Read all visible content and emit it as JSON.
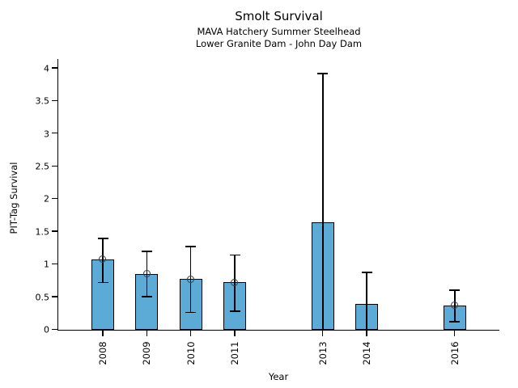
{
  "header": {
    "title": "Smolt Survival",
    "subtitle1": "MAVA Hatchery Summer Steelhead",
    "subtitle2": "Lower Granite Dam - John Day Dam"
  },
  "chart_data": {
    "type": "bar",
    "title": "Smolt Survival",
    "subtitles": [
      "MAVA Hatchery Summer Steelhead",
      "Lower Granite Dam - John Day Dam"
    ],
    "xlabel": "Year",
    "ylabel": "PIT-Tag Survival",
    "ylim": [
      0,
      4
    ],
    "yticks": [
      "0",
      "0.5",
      "1",
      "1.5",
      "2",
      "2.5",
      "3",
      "3.5",
      "4"
    ],
    "ytick_values": [
      0,
      0.5,
      1,
      1.5,
      2,
      2.5,
      3,
      3.5,
      4
    ],
    "xlim_years": [
      2007,
      2017
    ],
    "grid": false,
    "legend": "none",
    "bar_fill_color": "#5BABD6",
    "bar_edge_color": "#000000",
    "error_bar_color": "#000000",
    "categories": [
      "2008",
      "2009",
      "2010",
      "2011",
      "2013",
      "2014",
      "2016"
    ],
    "years": [
      2008,
      2009,
      2010,
      2011,
      2013,
      2014,
      2016
    ],
    "values": [
      1.07,
      0.85,
      0.77,
      0.72,
      1.64,
      0.39,
      0.37
    ],
    "error_low": [
      0.72,
      0.5,
      0.26,
      0.28,
      0.0,
      0.0,
      0.12
    ],
    "error_high": [
      1.39,
      1.19,
      1.27,
      1.14,
      3.91,
      0.87,
      0.6
    ],
    "point_marker_shown": [
      true,
      true,
      true,
      true,
      false,
      false,
      true
    ]
  }
}
